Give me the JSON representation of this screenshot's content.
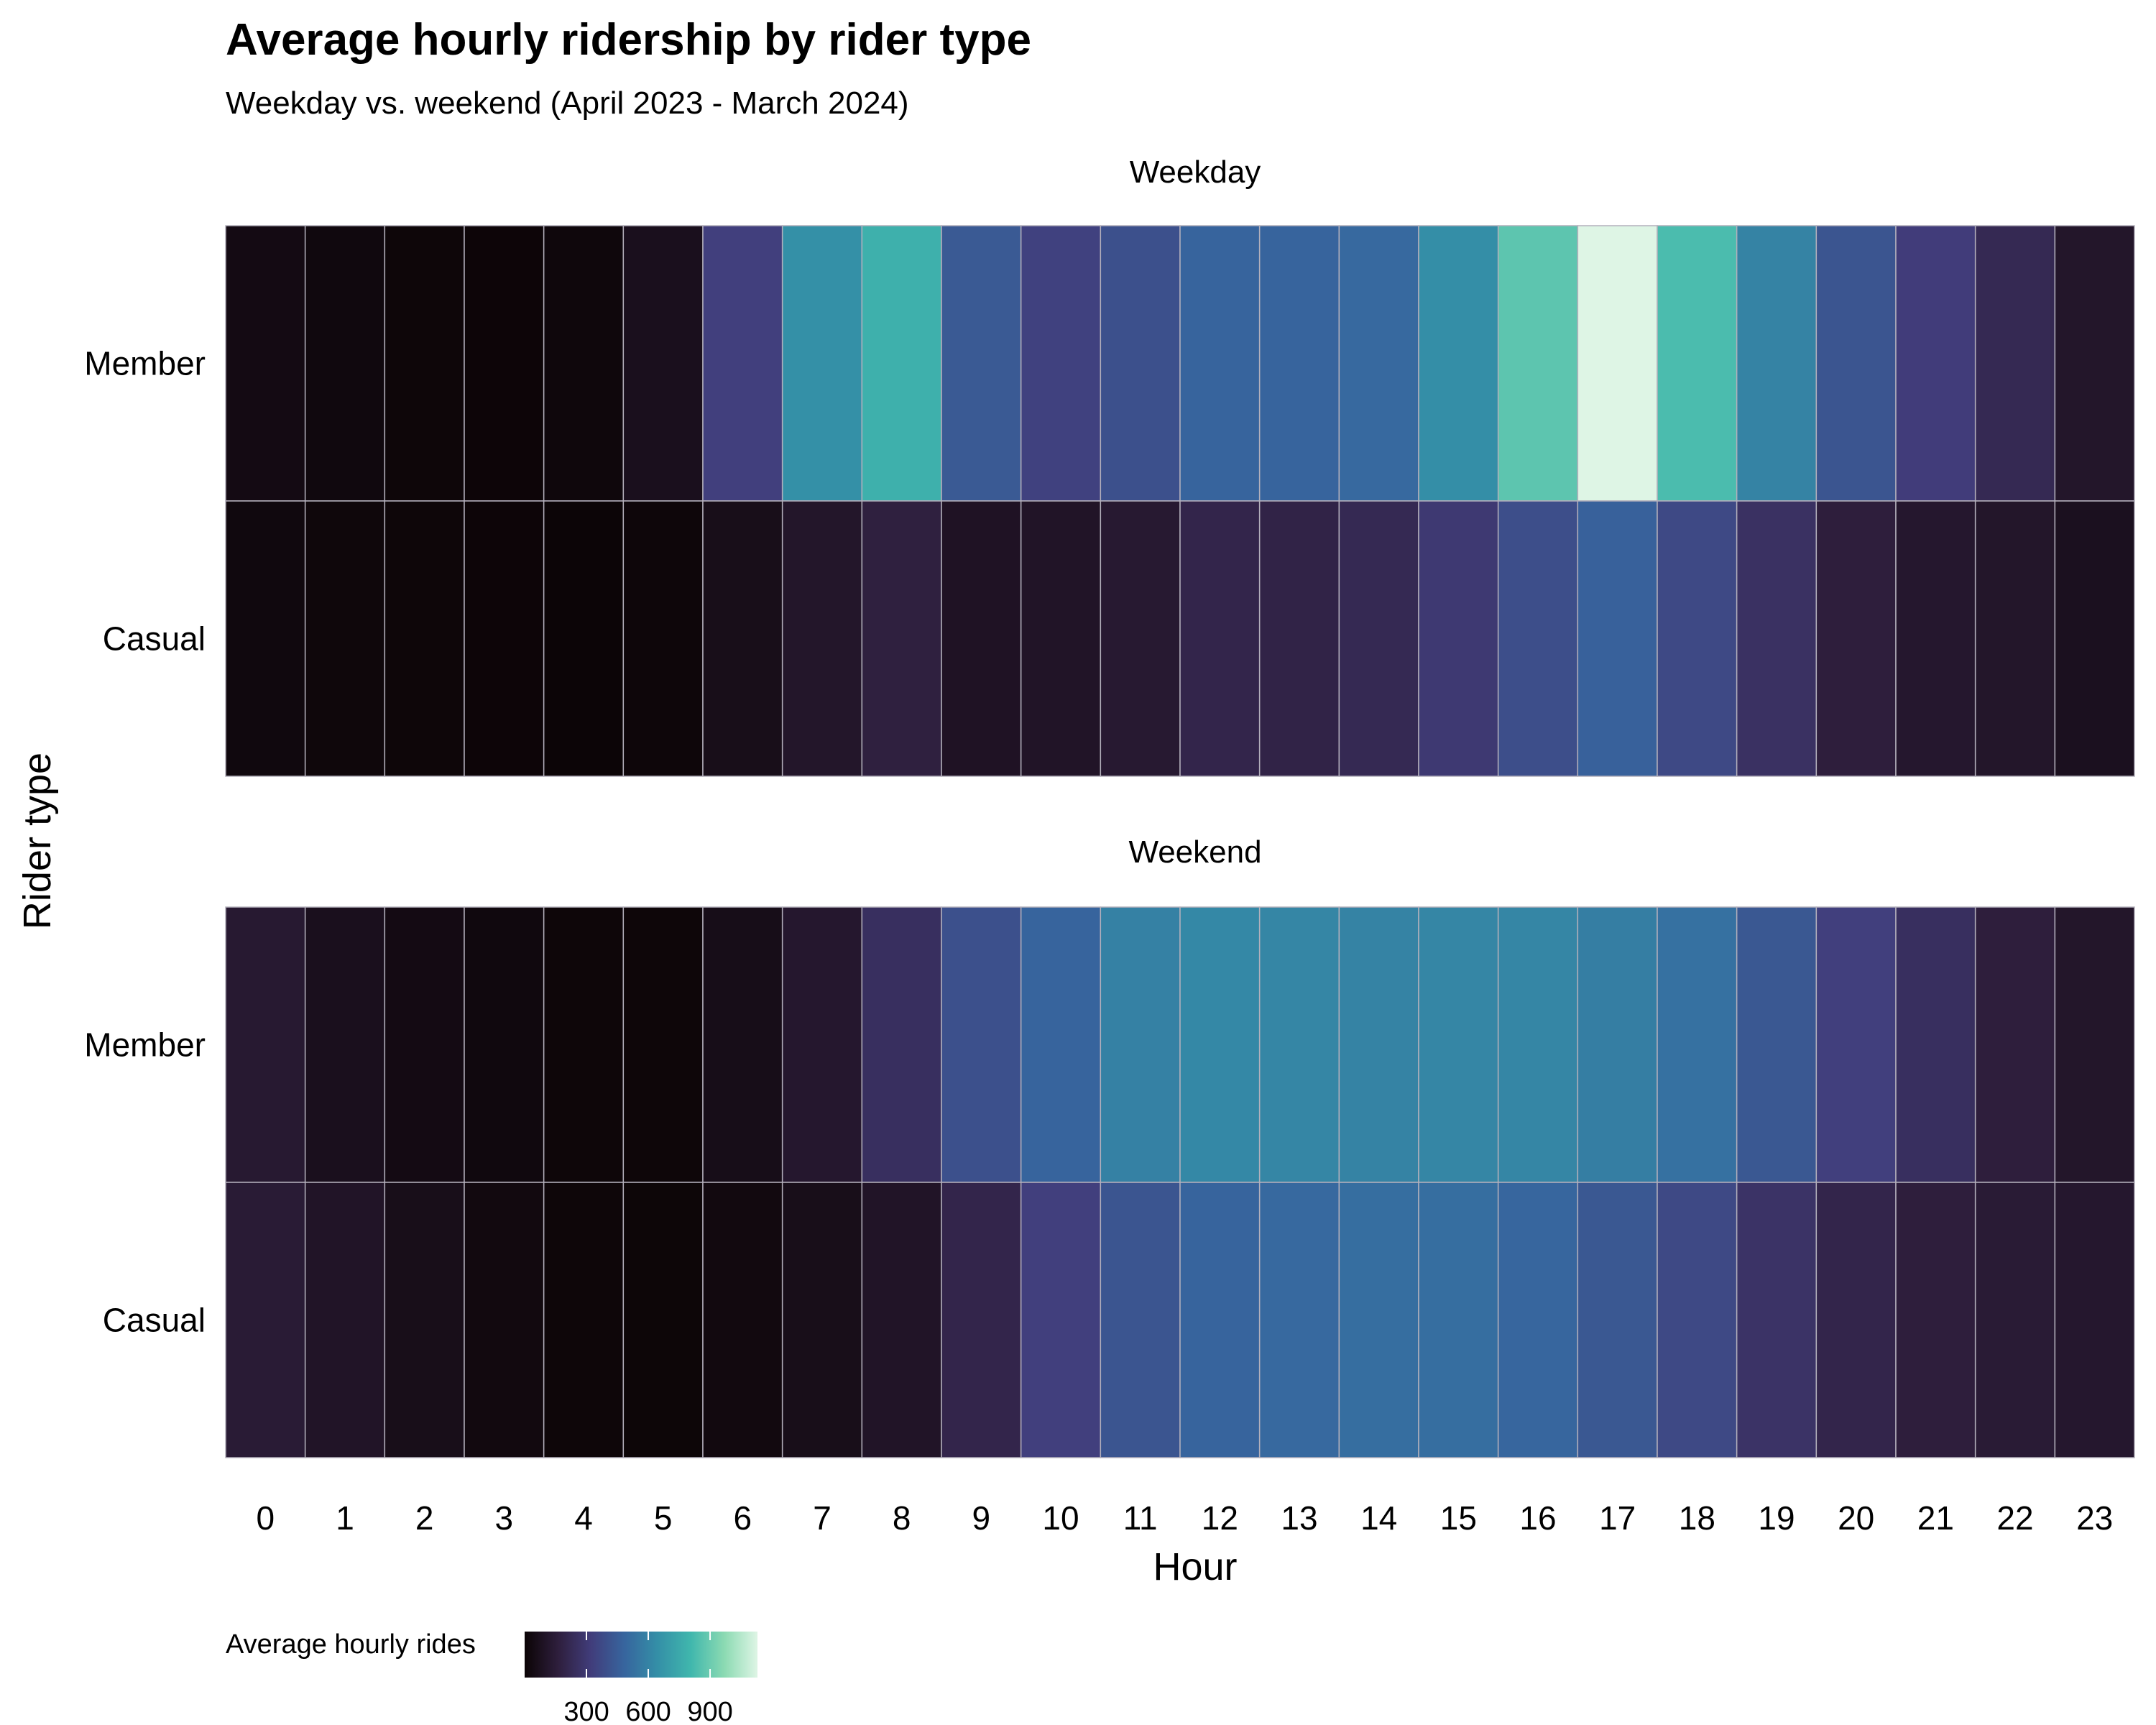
{
  "chart_data": {
    "type": "heatmap",
    "title": "Average hourly ridership by rider type",
    "subtitle": "Weekday vs. weekend (April 2023 - March 2024)",
    "xlabel": "Hour",
    "ylabel": "Rider type",
    "x": [
      0,
      1,
      2,
      3,
      4,
      5,
      6,
      7,
      8,
      9,
      10,
      11,
      12,
      13,
      14,
      15,
      16,
      17,
      18,
      19,
      20,
      21,
      22,
      23
    ],
    "rows": [
      "Member",
      "Casual"
    ],
    "facets": [
      {
        "name": "Weekday",
        "series": [
          {
            "name": "Member",
            "values": [
              40,
              25,
              12,
              8,
              20,
              70,
              330,
              650,
              780,
              440,
              340,
              400,
              480,
              480,
              500,
              640,
              870,
              1130,
              830,
              600,
              420,
              320,
              220,
              110
            ]
          },
          {
            "name": "Casual",
            "values": [
              25,
              18,
              12,
              8,
              5,
              15,
              60,
              110,
              170,
              90,
              100,
              130,
              200,
              190,
              220,
              300,
              390,
              470,
              370,
              260,
              160,
              120,
              110,
              75
            ]
          }
        ]
      },
      {
        "name": "Weekend",
        "series": [
          {
            "name": "Member",
            "values": [
              130,
              70,
              40,
              25,
              12,
              12,
              55,
              120,
              250,
              400,
              480,
              590,
              620,
              610,
              600,
              610,
              610,
              580,
              530,
              430,
              330,
              250,
              160,
              110
            ]
          },
          {
            "name": "Casual",
            "values": [
              140,
              100,
              60,
              30,
              12,
              10,
              30,
              60,
              100,
              200,
              330,
              420,
              480,
              500,
              520,
              520,
              490,
              430,
              370,
              270,
              200,
              160,
              140,
              120
            ]
          }
        ]
      }
    ],
    "colorbar": {
      "title": "Average hourly rides",
      "ticks": [
        300,
        600,
        900
      ],
      "range": [
        0,
        1130
      ],
      "palette": [
        "#0b0405",
        "#2e1e3c",
        "#413d7b",
        "#37659e",
        "#348fa7",
        "#40b7ad",
        "#8bdab2",
        "#def5e5"
      ]
    },
    "legend_position": "bottom-left",
    "grid": false
  }
}
